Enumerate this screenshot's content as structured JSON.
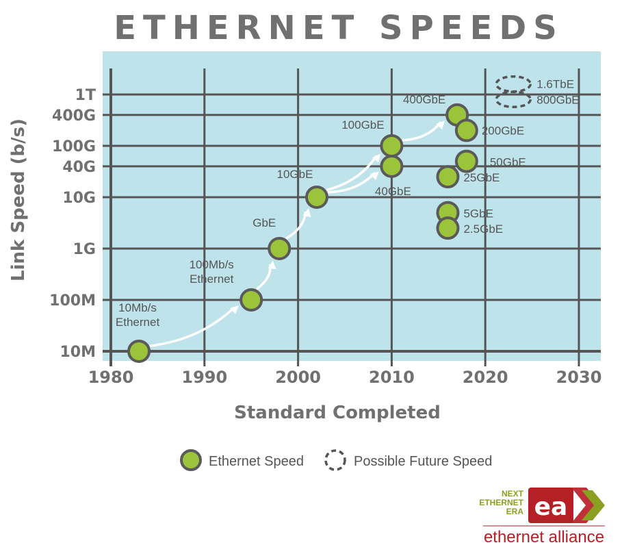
{
  "colors": {
    "plot_bg": "#bfe3ea",
    "grid": "#555555",
    "point_fill": "#9bc43a",
    "point_stroke": "#5a5a5a",
    "arrow": "#ffffff",
    "text": "#707070",
    "logo_red": "#b52026",
    "logo_green": "#8aa020"
  },
  "chart_data": {
    "type": "scatter",
    "title": "ETHERNET SPEEDS",
    "xlabel": "Standard Completed",
    "ylabel": "Link Speed (b/s)",
    "xlim": [
      1980,
      2030
    ],
    "x_ticks": [
      1980,
      1990,
      2000,
      2010,
      2020,
      2030
    ],
    "x_tick_labels": [
      "1980",
      "1990",
      "2000",
      "2010",
      "2020",
      "2030"
    ],
    "y_scale": "log",
    "y_ticks": [
      10000000.0,
      100000000.0,
      1000000000.0,
      10000000000.0,
      40000000000.0,
      100000000000.0,
      400000000000.0,
      1000000000000.0
    ],
    "y_tick_labels": [
      "10M",
      "100M",
      "1G",
      "10G",
      "40G",
      "100G",
      "400G",
      "1T"
    ],
    "grid": true,
    "legend_position": "bottom",
    "series": [
      {
        "name": "Ethernet Speed",
        "points": [
          {
            "label": "10Mb/s\nEthernet",
            "x": 1983,
            "y": 10000000.0
          },
          {
            "label": "100Mb/s\nEthernet",
            "x": 1995,
            "y": 100000000.0
          },
          {
            "label": "GbE",
            "x": 1998,
            "y": 1000000000.0
          },
          {
            "label": "10GbE",
            "x": 2002,
            "y": 10000000000.0
          },
          {
            "label": "40GbE",
            "x": 2010,
            "y": 40000000000.0
          },
          {
            "label": "100GbE",
            "x": 2010,
            "y": 100000000000.0
          },
          {
            "label": "400GbE",
            "x": 2017,
            "y": 400000000000.0
          },
          {
            "label": "200GbE",
            "x": 2018,
            "y": 200000000000.0
          },
          {
            "label": "50GbE",
            "x": 2018,
            "y": 50000000000.0
          },
          {
            "label": "25GbE",
            "x": 2016,
            "y": 25000000000.0
          },
          {
            "label": "5GbE",
            "x": 2016,
            "y": 5000000000.0
          },
          {
            "label": "2.5GbE",
            "x": 2016,
            "y": 2500000000.0
          }
        ]
      },
      {
        "name": "Possible Future Speed",
        "points": [
          {
            "label": "1.6TbE",
            "x": 2023,
            "y": 1600000000000.0
          },
          {
            "label": "800GbE",
            "x": 2023,
            "y": 800000000000.0
          }
        ]
      }
    ],
    "arrows": [
      {
        "from": "10Mb/s\nEthernet",
        "to": "100Mb/s\nEthernet"
      },
      {
        "from": "100Mb/s\nEthernet",
        "to": "GbE"
      },
      {
        "from": "GbE",
        "to": "10GbE"
      },
      {
        "from": "10GbE",
        "to": "100GbE"
      },
      {
        "from": "10GbE",
        "to": "40GbE"
      },
      {
        "from": "100GbE",
        "to": "400GbE"
      }
    ]
  },
  "logo": {
    "tagline_lines": [
      "NEXT",
      "ETHERNET",
      "ERA"
    ],
    "mark_text": "ea",
    "name": "ethernet alliance"
  }
}
